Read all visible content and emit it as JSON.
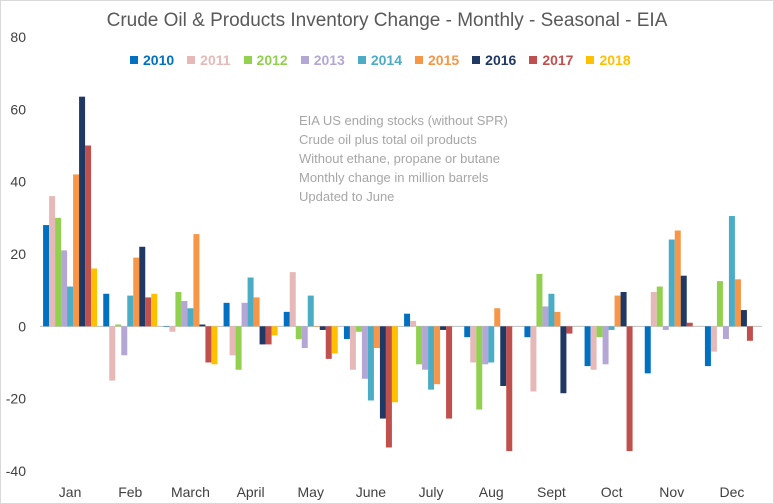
{
  "chart_data": {
    "type": "bar",
    "title": "Crude Oil & Products Inventory Change - Monthly - Seasonal - EIA",
    "xlabel": "",
    "ylabel": "",
    "ylim": [
      -40,
      80
    ],
    "yticks": [
      -40,
      -20,
      0,
      20,
      40,
      60,
      80
    ],
    "grid": false,
    "legend_position": "top",
    "categories": [
      "Jan",
      "Feb",
      "March",
      "April",
      "May",
      "June",
      "July",
      "Aug",
      "Sept",
      "Oct",
      "Nov",
      "Dec"
    ],
    "series": [
      {
        "name": "2010",
        "color": "#0070c0",
        "values": [
          28,
          9,
          0,
          6.5,
          4,
          -3.5,
          3.5,
          -3,
          -3,
          -11,
          -13,
          -11
        ]
      },
      {
        "name": "2011",
        "color": "#e6b9b8",
        "values": [
          36,
          -15,
          -1.5,
          -8,
          15,
          -12,
          1.5,
          -10,
          -18,
          -12,
          9.5,
          -7
        ]
      },
      {
        "name": "2012",
        "color": "#92d050",
        "values": [
          30,
          0.5,
          9.5,
          -12,
          -3.5,
          -1.5,
          -10.5,
          -23,
          14.5,
          -3,
          11,
          12.5
        ]
      },
      {
        "name": "2013",
        "color": "#b4a7d6",
        "values": [
          21,
          -8,
          7,
          6.5,
          -6,
          -14.5,
          -12,
          -10.5,
          5.5,
          -10.5,
          -1,
          -3.5
        ]
      },
      {
        "name": "2014",
        "color": "#4bacc6",
        "values": [
          11,
          8.5,
          5,
          13.5,
          8.5,
          -20.5,
          -17.5,
          -10,
          9,
          -1,
          24,
          30.5
        ]
      },
      {
        "name": "2015",
        "color": "#f79646",
        "values": [
          42,
          19,
          25.5,
          8,
          0,
          -6,
          -16,
          5,
          4,
          8.5,
          26.5,
          13
        ]
      },
      {
        "name": "2016",
        "color": "#1f3864",
        "values": [
          63.5,
          22,
          0.5,
          -5,
          -1,
          -25.5,
          -1,
          -16.5,
          -18.5,
          9.5,
          14,
          4.5
        ]
      },
      {
        "name": "2017",
        "color": "#c0504d",
        "values": [
          50,
          8,
          -10,
          -5,
          -9,
          -33.5,
          -25.5,
          -34.5,
          -2,
          -34.5,
          1,
          -4
        ]
      },
      {
        "name": "2018",
        "color": "#ffc000",
        "values": [
          16,
          9,
          -10.5,
          -2.5,
          -7.5,
          -21,
          null,
          null,
          null,
          null,
          null,
          null
        ]
      }
    ],
    "annotations": [
      "EIA US ending stocks (without SPR)",
      "Crude oil plus total oil products",
      "Without ethane, propane or butane",
      "Monthly change in million barrels",
      "Updated to June"
    ]
  }
}
